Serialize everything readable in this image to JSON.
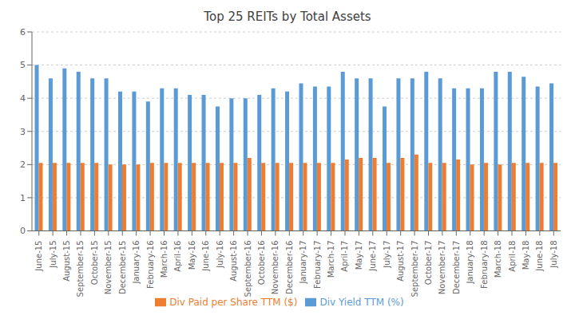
{
  "chart_data": {
    "type": "bar",
    "title": "Top 25 REITs by Total Assets",
    "categories": [
      "June-15",
      "July-15",
      "August-15",
      "September-15",
      "October-15",
      "November-15",
      "December-15",
      "January-16",
      "February-16",
      "March-16",
      "April-16",
      "May-16",
      "June-16",
      "July-16",
      "August-16",
      "September-16",
      "October-16",
      "November-16",
      "December-16",
      "January-17",
      "February-17",
      "March-17",
      "April-17",
      "May-17",
      "June-17",
      "July-17",
      "August-17",
      "September-17",
      "October-17",
      "November-17",
      "December-17",
      "January-18",
      "February-18",
      "March-18",
      "April-18",
      "May-18",
      "June-18",
      "July-18"
    ],
    "series": [
      {
        "name": "Div Yield TTM (%)",
        "color": "#5B9BD5",
        "values": [
          5.0,
          4.6,
          4.9,
          4.8,
          4.6,
          4.6,
          4.2,
          4.2,
          3.9,
          4.3,
          4.3,
          4.1,
          4.1,
          3.75,
          4.0,
          4.0,
          4.1,
          4.3,
          4.2,
          4.45,
          4.35,
          4.35,
          4.8,
          4.6,
          4.6,
          3.75,
          4.6,
          4.6,
          4.8,
          4.6,
          4.3,
          4.3,
          4.3,
          4.8,
          4.8,
          4.65,
          4.35,
          4.45
        ]
      },
      {
        "name": "Div Paid per Share TTM ($)",
        "color": "#ED7D31",
        "values": [
          2.05,
          2.05,
          2.05,
          2.05,
          2.05,
          2.0,
          2.0,
          2.0,
          2.05,
          2.05,
          2.05,
          2.05,
          2.05,
          2.05,
          2.05,
          2.2,
          2.05,
          2.05,
          2.05,
          2.05,
          2.05,
          2.05,
          2.15,
          2.2,
          2.2,
          2.05,
          2.2,
          2.3,
          2.05,
          2.05,
          2.15,
          2.0,
          2.05,
          2.0,
          2.05,
          2.05,
          2.05,
          2.05
        ]
      }
    ],
    "ylim": [
      0,
      6
    ],
    "yticks": [
      0,
      1,
      2,
      3,
      4,
      5,
      6
    ],
    "grid": true,
    "legend": "bottom"
  }
}
